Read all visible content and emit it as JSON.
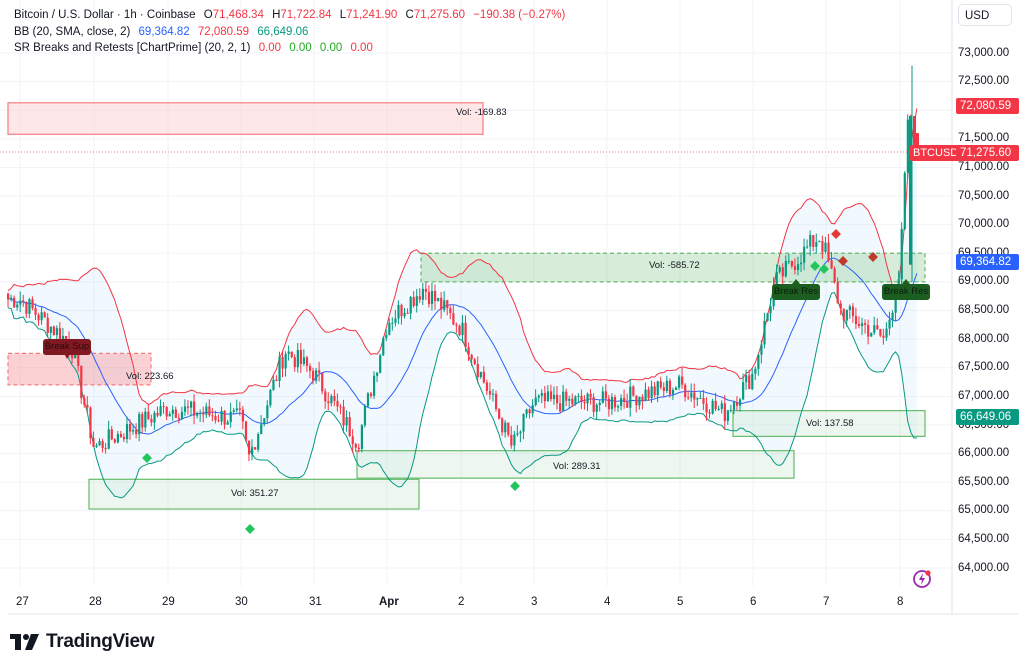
{
  "header": {
    "symbol_title": "Bitcoin / U.S. Dollar · 1h · Coinbase",
    "ohlc": {
      "open_label": "O",
      "open": "71,468.34",
      "high_label": "H",
      "high": "71,722.84",
      "low_label": "L",
      "low": "71,241.90",
      "close_label": "C",
      "close": "71,275.60",
      "change": "−190.38 (−0.27%)"
    },
    "indicators": [
      {
        "name": "BB (20, SMA, close, 2)",
        "values": [
          "69,364.82",
          "72,080.59",
          "66,649.06"
        ]
      },
      {
        "name": "SR Breaks and Retests [ChartPrime] (20, 2, 1)",
        "values": [
          "0.00",
          "0.00",
          "0.00",
          "0.00"
        ]
      }
    ]
  },
  "currency_button": "USD",
  "price_axis": {
    "ticks": [
      "73,000.00",
      "72,500.00",
      "71,500.00",
      "71,000.00",
      "70,500.00",
      "70,000.00",
      "69,500.00",
      "69,000.00",
      "68,500.00",
      "68,000.00",
      "67,500.00",
      "67,000.00",
      "66,500.00",
      "66,000.00",
      "65,500.00",
      "65,000.00",
      "64,500.00",
      "64,000.00"
    ],
    "tags": {
      "bb_upper": "72,080.59",
      "symbol": "BTCUSD",
      "last_price": "71,275.60",
      "bb_basis": "69,364.82",
      "bb_lower": "66,649.06"
    }
  },
  "time_axis": {
    "ticks": [
      "27",
      "28",
      "29",
      "30",
      "31",
      "Apr",
      "2",
      "3",
      "4",
      "5",
      "6",
      "7",
      "8"
    ]
  },
  "zones": {
    "vol_labels": [
      "Vol: -169.83",
      "Vol: 223.66",
      "Vol: 351.27",
      "Vol: -585.72",
      "Vol: 289.31",
      "Vol: 137.58"
    ],
    "signals": [
      "Break Sup",
      "Break Res",
      "Break Res"
    ]
  },
  "brand": {
    "name": "TradingView"
  },
  "colors": {
    "up": "#089981",
    "down": "#f23645",
    "bb_basis": "#2962ff",
    "bb_upper": "#f23645",
    "bb_lower": "#089981",
    "support_zone": "#4caf50",
    "resistance_zone": "#f77c80",
    "break_sup": "#801922",
    "break_res": "#1b5e20"
  },
  "chart_data": {
    "type": "candlestick",
    "title": "Bitcoin / U.S. Dollar · 1h · Coinbase",
    "xlabel": "",
    "ylabel": "USD",
    "x_ticks": [
      "27",
      "28",
      "29",
      "30",
      "31",
      "Apr",
      "2",
      "3",
      "4",
      "5",
      "6",
      "7",
      "8"
    ],
    "ylim": [
      63700,
      73400
    ],
    "grid": true,
    "last": {
      "open": 71468.34,
      "high": 71722.84,
      "low": 71241.9,
      "close": 71275.6,
      "change": -190.38,
      "change_pct": -0.27
    },
    "bollinger": {
      "period": 20,
      "stddev": 2,
      "basis": 69364.82,
      "upper": 72080.59,
      "lower": 66649.06
    },
    "approx_daily_path": [
      {
        "x": "27",
        "price": 68700
      },
      {
        "x": "27.7",
        "price": 67900
      },
      {
        "x": "28",
        "price": 66100
      },
      {
        "x": "29",
        "price": 66800
      },
      {
        "x": "30",
        "price": 66600
      },
      {
        "x": "30.1",
        "price": 65900
      },
      {
        "x": "30.6",
        "price": 67800
      },
      {
        "x": "31",
        "price": 67400
      },
      {
        "x": "31.6",
        "price": 66200
      },
      {
        "x": "Apr",
        "price": 68300
      },
      {
        "x": "Apr.5",
        "price": 68900
      },
      {
        "x": "2",
        "price": 68200
      },
      {
        "x": "2.7",
        "price": 66100
      },
      {
        "x": "3",
        "price": 66900
      },
      {
        "x": "4",
        "price": 66900
      },
      {
        "x": "5",
        "price": 67200
      },
      {
        "x": "5.6",
        "price": 66700
      },
      {
        "x": "6",
        "price": 67400
      },
      {
        "x": "6.3",
        "price": 69000
      },
      {
        "x": "6.9",
        "price": 69800
      },
      {
        "x": "7",
        "price": 69500
      },
      {
        "x": "7.2",
        "price": 68500
      },
      {
        "x": "7.8",
        "price": 68000
      },
      {
        "x": "8",
        "price": 69200
      },
      {
        "x": "8.1",
        "price": 71700
      },
      {
        "x": "8.2",
        "price": 71275.6
      }
    ],
    "zones": [
      {
        "type": "resistance",
        "top": 72130,
        "bottom": 71580,
        "vol": -169.83
      },
      {
        "type": "resistance",
        "top": 67750,
        "bottom": 67200,
        "vol": 223.66,
        "broken": true
      },
      {
        "type": "support",
        "top": 65550,
        "bottom": 65030,
        "vol": 351.27
      },
      {
        "type": "resistance_broken",
        "top": 69500,
        "bottom": 69000,
        "vol": -585.72
      },
      {
        "type": "support",
        "top": 66050,
        "bottom": 65570,
        "vol": 289.31
      },
      {
        "type": "support",
        "top": 66750,
        "bottom": 66300,
        "vol": 137.58
      }
    ],
    "signals": [
      {
        "label": "Break Sup",
        "x": "27.7",
        "price": 67900
      },
      {
        "label": "Break Res",
        "x": "6.5",
        "price": 68800
      },
      {
        "label": "Break Res",
        "x": "8",
        "price": 68800
      }
    ]
  }
}
